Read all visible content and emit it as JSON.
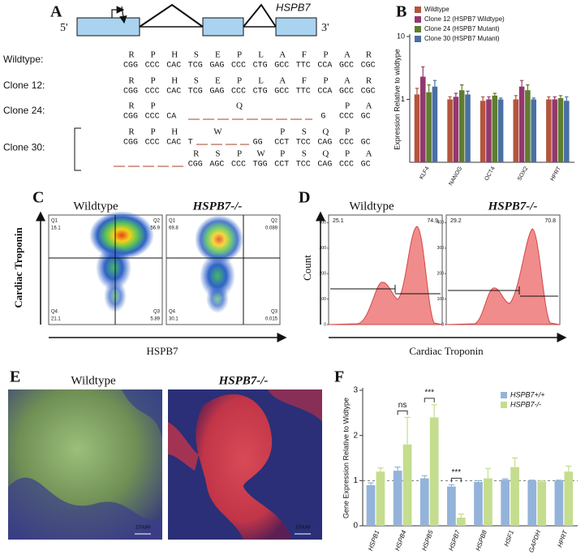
{
  "figure": {
    "panel_labels": [
      "A",
      "B",
      "C",
      "D",
      "E",
      "F"
    ],
    "panel_a": {
      "five_prime": "5'",
      "three_prime": "3'",
      "gene": "HSPB7",
      "rows": [
        {
          "label": "Wildtype:",
          "lines": [
            {
              "aa": [
                "R",
                "P",
                "H",
                "S",
                "E",
                "P",
                "L",
                "A",
                "F",
                "P",
                "A",
                "R"
              ],
              "codons": [
                "CGG",
                "CCC",
                "CAC",
                "TCG",
                "GAG",
                "CCC",
                "CTG",
                "GCC",
                "TTC",
                "CCA",
                "GCC",
                "CGC"
              ]
            }
          ]
        },
        {
          "label": "Clone 12:",
          "lines": [
            {
              "aa": [
                "R",
                "P",
                "H",
                "S",
                "E",
                "P",
                "L",
                "A",
                "F",
                "P",
                "A",
                "R"
              ],
              "codons": [
                "CGG",
                "CCC",
                "CAC",
                "TCG",
                "GAG",
                "CCC",
                "CTG",
                "GCC",
                "TTC",
                "CCA",
                "GCC",
                "CGC"
              ]
            }
          ]
        },
        {
          "label": "Clone 24:",
          "lines": [
            {
              "aa": [
                "R",
                "P",
                null,
                null,
                null,
                "Q",
                null,
                null,
                null,
                null,
                "P",
                "A"
              ],
              "codons": [
                "CGG",
                "CCC",
                "CA",
                null,
                null,
                null,
                null,
                null,
                null,
                "G",
                "CCC",
                "GC"
              ]
            }
          ]
        },
        {
          "label": "Clone 30:",
          "lines": [
            {
              "aa": [
                "R",
                "P",
                "H",
                null,
                "W",
                null,
                null,
                "P",
                "S",
                "Q",
                "P",
                null
              ],
              "codons": [
                "CGG",
                "CCC",
                "CAC",
                "T",
                null,
                null,
                "GG",
                "CCT",
                "TCC",
                "CAG",
                "CCC",
                "GC"
              ]
            },
            {
              "aa": [
                null,
                null,
                null,
                "R",
                "S",
                "P",
                "W",
                "P",
                "S",
                "Q",
                "P",
                "A"
              ],
              "codons": [
                null,
                null,
                null,
                "CGG",
                "AGC",
                "CCC",
                "TGG",
                "CCT",
                "TCC",
                "CAG",
                "CCC",
                "GC"
              ]
            }
          ]
        }
      ]
    },
    "panel_c": {
      "titles": [
        "Wildtype",
        "HSPB7-/-"
      ],
      "y_label": "Cardiac Troponin",
      "x_label": "HSPB7",
      "plots": [
        {
          "quadrants": [
            "Q1",
            "Q2",
            "Q3",
            "Q4"
          ],
          "values": [
            16.1,
            56.9,
            5.89,
            21.1
          ]
        },
        {
          "quadrants": [
            "Q1",
            "Q2",
            "Q3",
            "Q4"
          ],
          "values": [
            69.8,
            0.089,
            0.015,
            30.1
          ]
        }
      ]
    },
    "panel_d": {
      "titles": [
        "Wildtype",
        "HSPB7-/-"
      ],
      "y_label": "Count",
      "x_label": "Cardiac Troponin",
      "ylim": [
        0,
        430
      ],
      "yticks": [
        0,
        100,
        200,
        300,
        400
      ],
      "plots": [
        {
          "gates": [
            25.1,
            74.9
          ]
        },
        {
          "gates": [
            29.2,
            70.8
          ]
        }
      ]
    },
    "panel_e": {
      "titles": [
        "Wildtype",
        "HSPB7-/-"
      ],
      "scale_bars": [
        "100uM",
        "100uM"
      ]
    }
  },
  "chart_data": [
    {
      "type": "bar",
      "y_label": "Expression Relative to wildtype",
      "log_scale": true,
      "ylim": [
        0.1,
        10
      ],
      "yticks": [
        1,
        10
      ],
      "legend": "top-left",
      "categories": [
        "KLF4",
        "NANOG",
        "OCT4",
        "SOX2",
        "HPRT"
      ],
      "series": [
        {
          "name": "Wildtype",
          "color": "#b4553c",
          "values": [
            1.2,
            1.0,
            0.95,
            1.0,
            1.0
          ],
          "errors": [
            0.3,
            0.1,
            0.15,
            0.15,
            0.1
          ]
        },
        {
          "name": "Clone 12 (HSPB7 Wildtype)",
          "color": "#93386e",
          "values": [
            2.3,
            1.1,
            1.0,
            1.6,
            1.0
          ],
          "errors": [
            1.0,
            0.15,
            0.1,
            0.4,
            0.1
          ]
        },
        {
          "name": "Clone 24 (HSPB7 Mutant)",
          "color": "#5f7d2f",
          "values": [
            1.3,
            1.4,
            1.15,
            1.4,
            1.05
          ],
          "errors": [
            0.4,
            0.3,
            0.1,
            0.3,
            0.1
          ]
        },
        {
          "name": "Clone 30 (HSPB7 Mutant)",
          "color": "#4a70a3",
          "values": [
            1.6,
            1.2,
            1.0,
            1.0,
            0.95
          ],
          "errors": [
            0.4,
            0.15,
            0.05,
            0.05,
            0.15
          ]
        }
      ]
    },
    {
      "type": "bar",
      "y_label": "Gene Expression Relative to Widtype",
      "log_scale": false,
      "ylim": [
        0,
        3
      ],
      "yticks": [
        0,
        1,
        2,
        3
      ],
      "legend": "top-right",
      "reference_line": 1,
      "categories": [
        "HSPB1",
        "HSPB4",
        "HSPB5",
        "HSPB7",
        "HSPB8",
        "HSF1",
        "GAPDH",
        "HPRT"
      ],
      "series": [
        {
          "name": "HSPB7+/+",
          "color": "#94b3da",
          "values": [
            0.9,
            1.22,
            1.05,
            0.87,
            0.97,
            1.02,
            1.0,
            1.0
          ],
          "errors": [
            0.05,
            0.08,
            0.06,
            0.04,
            0.03,
            0.02,
            0.01,
            0.01
          ]
        },
        {
          "name": "HSPB7-/-",
          "color": "#c5dd8e",
          "values": [
            1.2,
            1.8,
            2.4,
            0.18,
            1.05,
            1.3,
            0.98,
            1.2
          ],
          "errors": [
            0.08,
            0.6,
            0.28,
            0.08,
            0.22,
            0.2,
            0.02,
            0.12
          ]
        }
      ],
      "annotations": [
        {
          "text": "ns",
          "category": "HSPB4"
        },
        {
          "text": "***",
          "category": "HSPB5"
        },
        {
          "text": "***",
          "category": "HSPB7"
        }
      ]
    }
  ]
}
